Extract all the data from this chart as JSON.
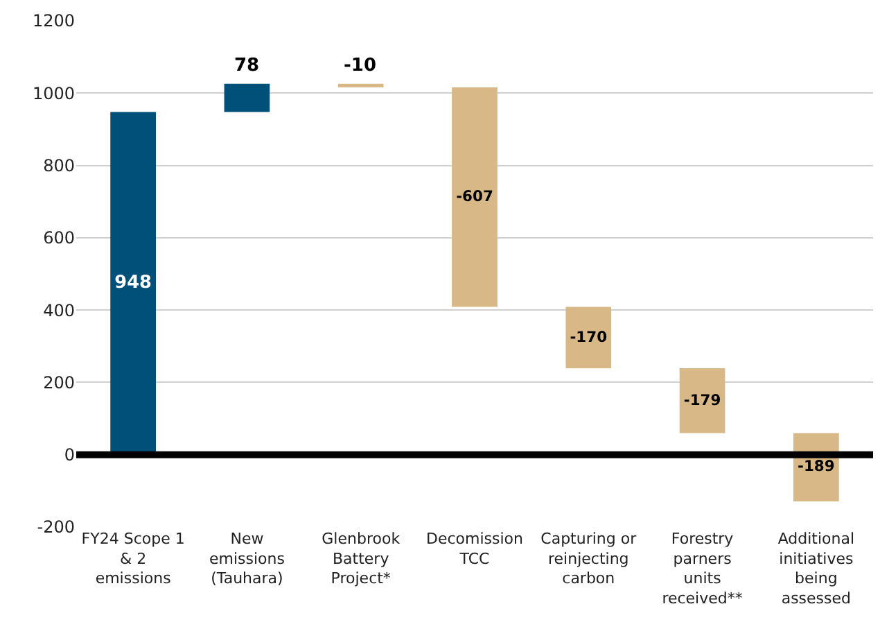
{
  "chart_data": {
    "type": "bar",
    "categories": [
      "FY24 Scope 1 & 2 emissions",
      "New emissions (Tauhara)",
      "Glenbrook Battery Project*",
      "Decomission TCC",
      "Capturing or reinjecting carbon",
      "Forestry parners units received**",
      "Additional initiatives being assessed"
    ],
    "values": [
      948,
      78,
      -10,
      -607,
      -170,
      -179,
      -189
    ],
    "base": [
      0,
      948,
      1026,
      1016,
      409,
      239,
      60
    ],
    "colors": [
      "#00507a",
      "#00507a",
      "#d9b887",
      "#d9b887",
      "#d9b887",
      "#d9b887",
      "#d9b887"
    ],
    "ylim": [
      -200,
      1200
    ],
    "yticks": [
      -200,
      0,
      200,
      400,
      600,
      800,
      1000,
      1200
    ],
    "grid": "y",
    "legend": false,
    "data_labels": true,
    "ref_lines": [
      {
        "axis": "y",
        "value": 0,
        "color": "#000000"
      }
    ]
  }
}
